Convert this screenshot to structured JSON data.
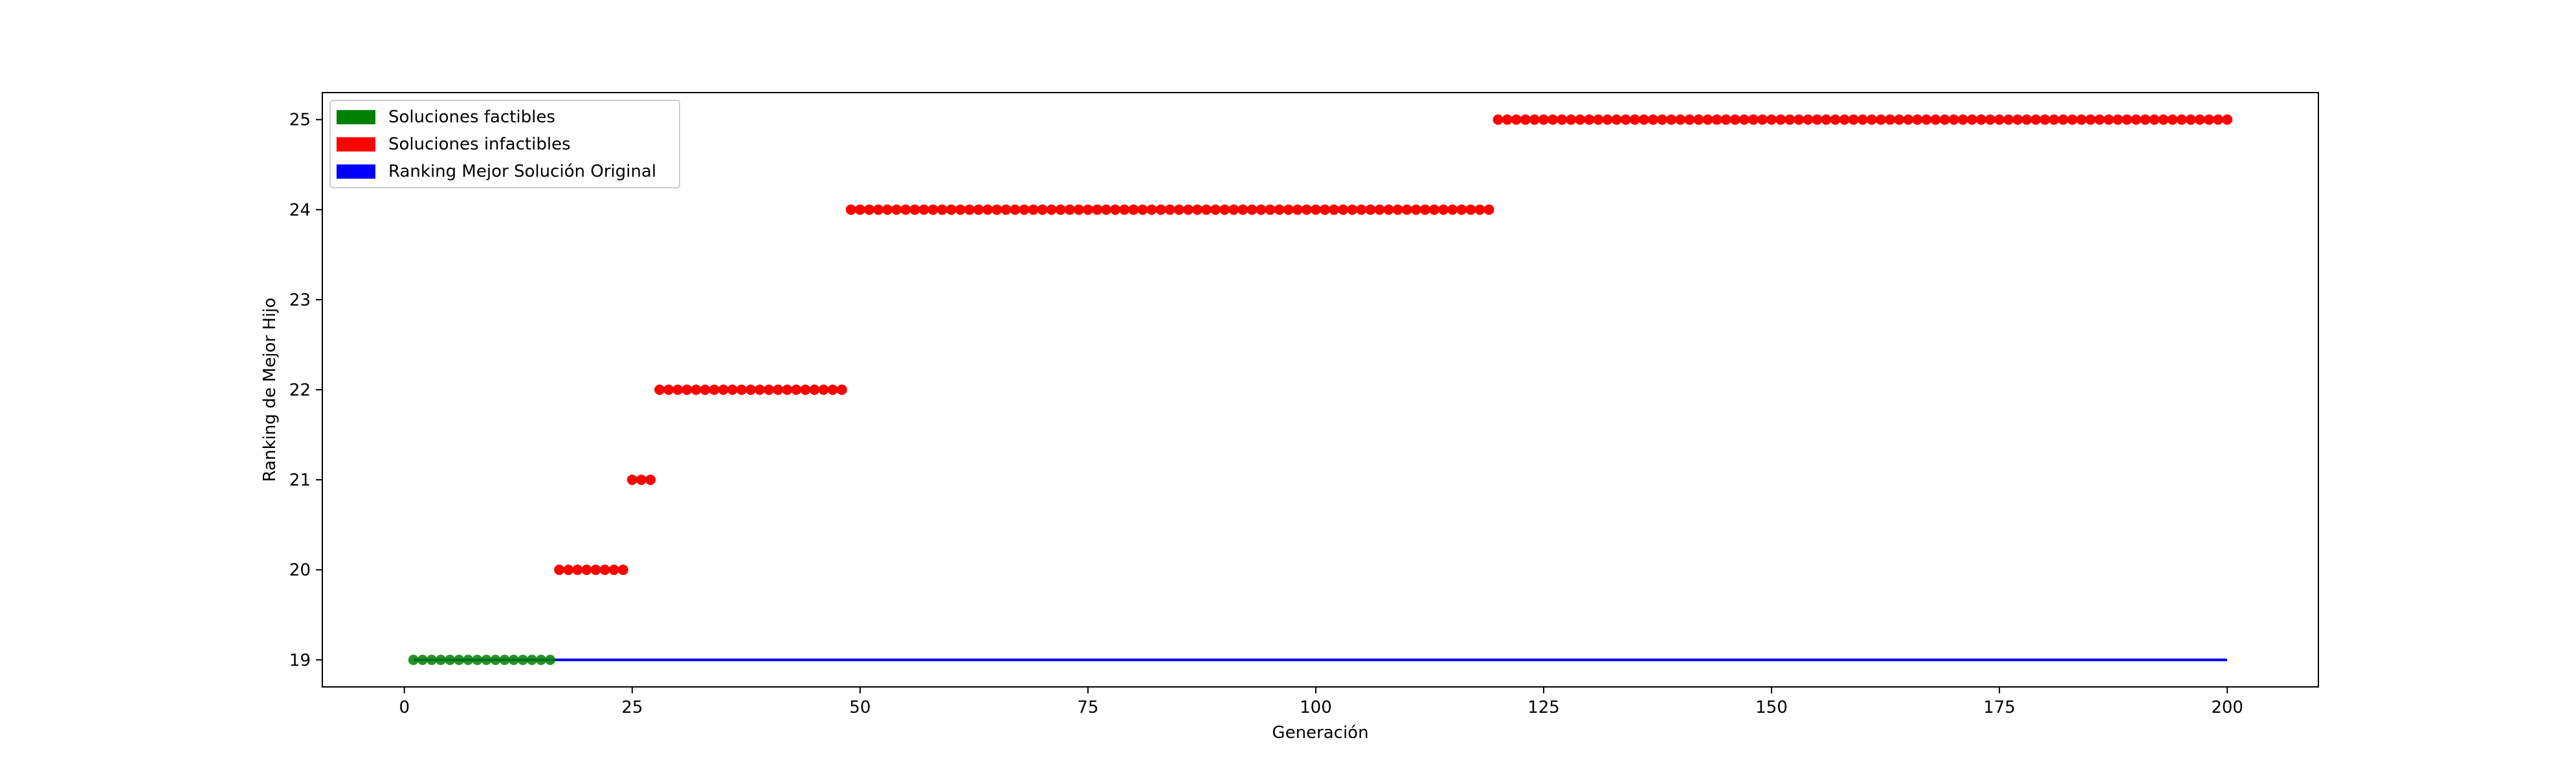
{
  "chart_data": {
    "type": "scatter",
    "title": "",
    "xlabel": "Generación",
    "ylabel": "Ranking de Mejor Hijo",
    "xlim": [
      -9,
      210
    ],
    "ylim": [
      18.7,
      25.3
    ],
    "xticks": [
      0,
      25,
      50,
      75,
      100,
      125,
      150,
      175,
      200
    ],
    "yticks": [
      19,
      20,
      21,
      22,
      23,
      24,
      25
    ],
    "grid": false,
    "legend_position": "upper-left",
    "legend": [
      {
        "label": "Soluciones factibles",
        "color": "#008000"
      },
      {
        "label": "Soluciones infactibles",
        "color": "#ff0000"
      },
      {
        "label": "Ranking Mejor Solución Original",
        "color": "#0000ff"
      }
    ],
    "series": [
      {
        "name": "Soluciones factibles",
        "color": "#008000",
        "segments": [
          {
            "from": 1,
            "to": 16,
            "value": 19
          }
        ]
      },
      {
        "name": "Soluciones infactibles",
        "color": "#ff0000",
        "segments": [
          {
            "from": 17,
            "to": 24,
            "value": 20
          },
          {
            "from": 25,
            "to": 27,
            "value": 21
          },
          {
            "from": 28,
            "to": 48,
            "value": 22
          },
          {
            "from": 49,
            "to": 119,
            "value": 24
          },
          {
            "from": 120,
            "to": 200,
            "value": 25
          }
        ]
      },
      {
        "name": "Ranking Mejor Solución Original",
        "type": "line",
        "color": "#0000ff",
        "x": [
          1,
          200
        ],
        "values": [
          19,
          19
        ]
      }
    ]
  }
}
